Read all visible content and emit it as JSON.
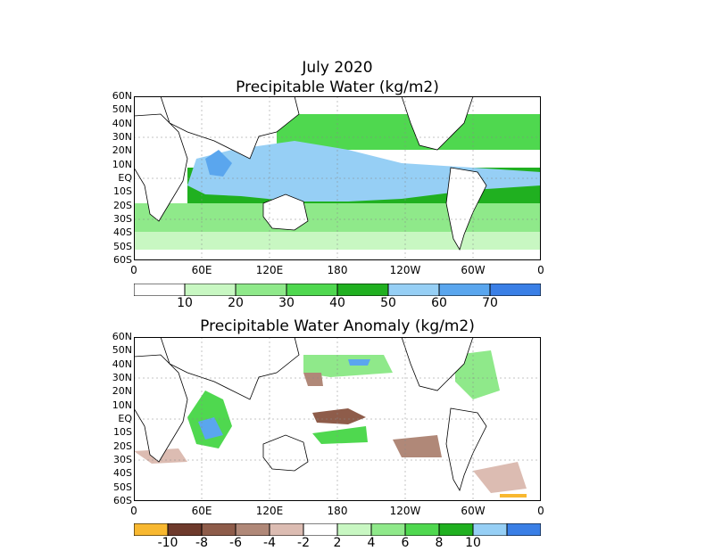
{
  "header": {
    "date": "July 2020",
    "title": "Precipitable Water (kg/m2)",
    "anomaly_title": "Precipitable Water Anomaly (kg/m2)"
  },
  "axes": {
    "lat_labels": [
      "60N",
      "50N",
      "40N",
      "30N",
      "20N",
      "10N",
      "EQ",
      "10S",
      "20S",
      "30S",
      "40S",
      "50S",
      "60S"
    ],
    "lon_labels": [
      "0",
      "60E",
      "120E",
      "180",
      "120W",
      "60W",
      "0"
    ]
  },
  "colorbar_top": {
    "colors": [
      "#ffffff",
      "#c8f7c2",
      "#8fe98a",
      "#4fd84f",
      "#20b020",
      "#96cff5",
      "#5aa6ee",
      "#3a7fe6"
    ],
    "labels": [
      "10",
      "20",
      "30",
      "40",
      "50",
      "60",
      "70"
    ]
  },
  "colorbar_bottom": {
    "colors": [
      "#f8b830",
      "#6e3a2c",
      "#8e5c4a",
      "#b08878",
      "#dcbcb2",
      "#ffffff",
      "#c8f7c2",
      "#8fe98a",
      "#4fd84f",
      "#20b020",
      "#96cff5",
      "#3a7fe6"
    ],
    "labels": [
      "-10",
      "-8",
      "-6",
      "-4",
      "-2",
      "2",
      "4",
      "6",
      "8",
      "10"
    ]
  }
}
